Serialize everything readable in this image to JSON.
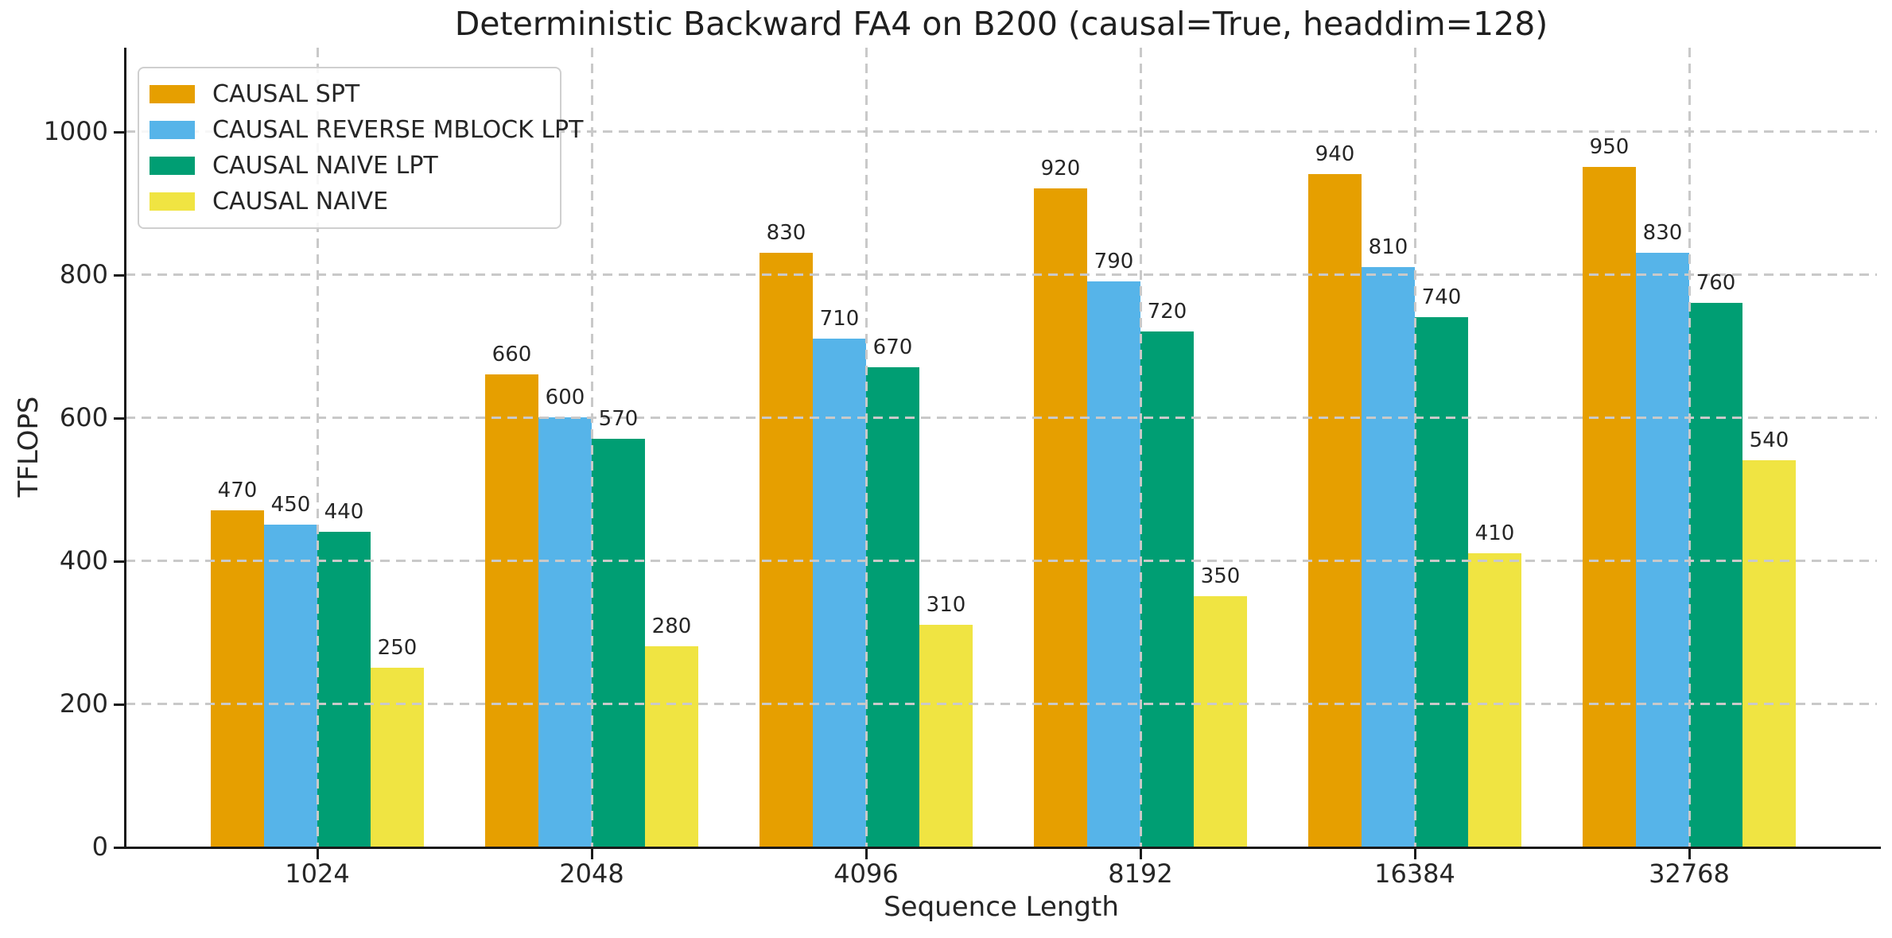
{
  "chart_data": {
    "type": "bar",
    "title": "Deterministic Backward FA4 on B200 (causal=True, headdim=128)",
    "xlabel": "Sequence Length",
    "ylabel": "TFLOPS",
    "categories": [
      "1024",
      "2048",
      "4096",
      "8192",
      "16384",
      "32768"
    ],
    "series": [
      {
        "name": "CAUSAL SPT",
        "color": "#E69F00",
        "values": [
          470,
          660,
          830,
          920,
          940,
          950
        ]
      },
      {
        "name": "CAUSAL REVERSE MBLOCK LPT",
        "color": "#56B4E9",
        "values": [
          450,
          600,
          710,
          790,
          810,
          830
        ]
      },
      {
        "name": "CAUSAL NAIVE LPT",
        "color": "#009E73",
        "values": [
          440,
          570,
          670,
          720,
          740,
          760
        ]
      },
      {
        "name": "CAUSAL NAIVE",
        "color": "#F0E442",
        "values": [
          250,
          280,
          310,
          350,
          410,
          540
        ]
      }
    ],
    "ylim": [
      0,
      1117
    ],
    "yticks": [
      0,
      200,
      400,
      600,
      800,
      1000
    ],
    "grid": true,
    "grid_style": "dashed",
    "legend_position": "upper left",
    "bar_labels": true
  }
}
